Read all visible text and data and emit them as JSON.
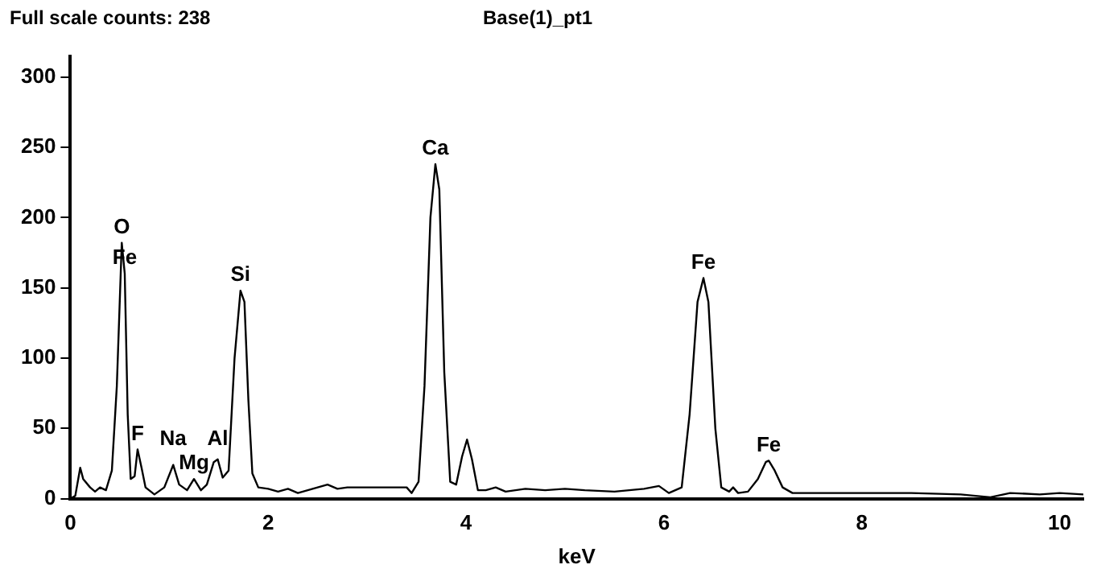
{
  "chart_data": {
    "type": "line",
    "title": "Base(1)_pt1",
    "xlabel": "keV",
    "annotations": [
      "Full scale counts: 238",
      {
        "text": "O",
        "x": 0.52,
        "y": 182
      },
      {
        "text": "Fe",
        "x": 0.55,
        "y": 160
      },
      {
        "text": "F",
        "x": 0.68,
        "y": 35
      },
      {
        "text": "Na",
        "x": 1.04,
        "y": 24
      },
      {
        "text": "Mg",
        "x": 1.25,
        "y": 14
      },
      {
        "text": "Al",
        "x": 1.49,
        "y": 28
      },
      {
        "text": "Si",
        "x": 1.72,
        "y": 148
      },
      {
        "text": "Ca",
        "x": 3.69,
        "y": 238
      },
      {
        "text": "Fe",
        "x": 6.4,
        "y": 157
      },
      {
        "text": "Fe",
        "x": 7.06,
        "y": 27
      }
    ],
    "series": [
      {
        "color": "#000000",
        "x": [
          0,
          0.05,
          0.1,
          0.13,
          0.2,
          0.25,
          0.3,
          0.36,
          0.42,
          0.47,
          0.52,
          0.55,
          0.58,
          0.61,
          0.65,
          0.68,
          0.72,
          0.76,
          0.85,
          0.95,
          1.04,
          1.1,
          1.18,
          1.25,
          1.32,
          1.38,
          1.45,
          1.49,
          1.54,
          1.6,
          1.66,
          1.72,
          1.76,
          1.8,
          1.84,
          1.9,
          2.0,
          2.1,
          2.2,
          2.3,
          2.4,
          2.5,
          2.6,
          2.7,
          2.8,
          3.0,
          3.2,
          3.4,
          3.45,
          3.52,
          3.58,
          3.64,
          3.69,
          3.73,
          3.78,
          3.84,
          3.9,
          3.96,
          4.01,
          4.06,
          4.12,
          4.2,
          4.3,
          4.4,
          4.6,
          4.8,
          5.0,
          5.2,
          5.5,
          5.8,
          5.95,
          6.05,
          6.18,
          6.26,
          6.34,
          6.4,
          6.45,
          6.52,
          6.58,
          6.66,
          6.7,
          6.75,
          6.85,
          6.95,
          7.03,
          7.06,
          7.12,
          7.2,
          7.3,
          7.6,
          8.0,
          8.5,
          9.0,
          9.3,
          9.5,
          9.8,
          10.0,
          10.24
        ],
        "values": [
          0,
          2,
          22,
          14,
          8,
          5,
          8,
          6,
          20,
          80,
          182,
          160,
          60,
          14,
          16,
          35,
          22,
          8,
          3,
          8,
          24,
          10,
          6,
          14,
          6,
          10,
          26,
          28,
          15,
          20,
          100,
          148,
          140,
          70,
          18,
          8,
          7,
          5,
          7,
          4,
          6,
          8,
          10,
          7,
          8,
          8,
          8,
          8,
          4,
          12,
          80,
          200,
          238,
          220,
          90,
          12,
          10,
          30,
          42,
          28,
          6,
          6,
          8,
          5,
          7,
          6,
          7,
          6,
          5,
          7,
          9,
          4,
          8,
          60,
          140,
          157,
          140,
          50,
          8,
          5,
          8,
          4,
          5,
          14,
          26,
          27,
          20,
          8,
          4,
          4,
          4,
          4,
          3,
          1,
          4,
          3,
          4,
          3
        ]
      }
    ],
    "xlim": [
      0,
      10.24
    ],
    "ylim": [
      0,
      315
    ],
    "xticks": [
      0,
      2,
      4,
      6,
      8,
      10
    ],
    "yticks": [
      0,
      50,
      100,
      150,
      200,
      250,
      300
    ],
    "grid": false,
    "legend": false,
    "marker": "none",
    "line_style": "solid"
  }
}
